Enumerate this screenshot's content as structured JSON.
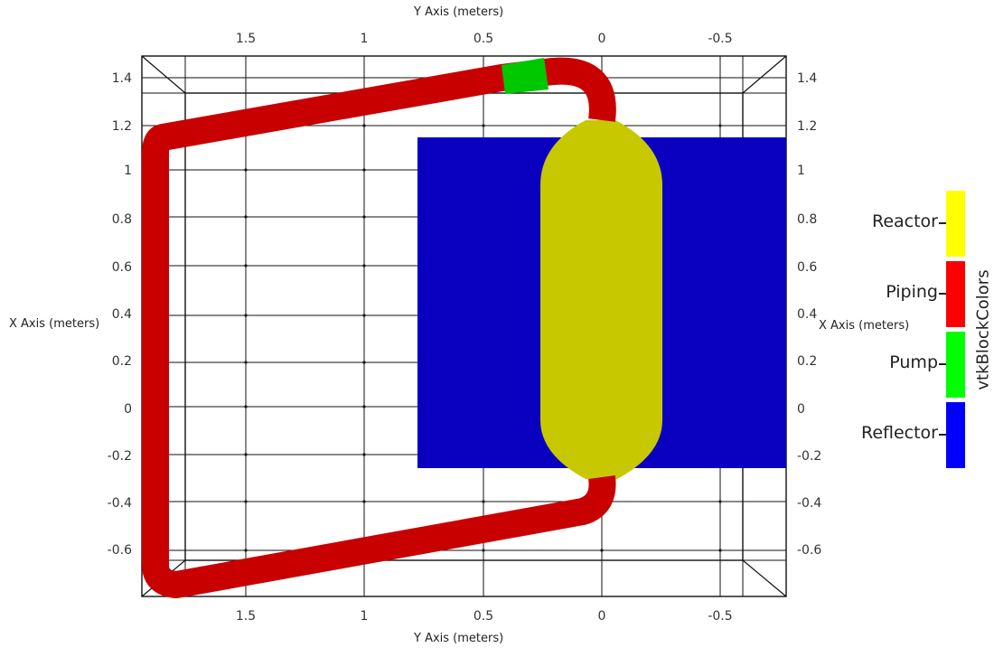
{
  "axes": {
    "top_title": "Y Axis (meters)",
    "bottom_title": "Y Axis (meters)",
    "left_title": "X Axis (meters)",
    "right_title": "X Axis (meters)",
    "y_ticks": [
      "1.5",
      "1",
      "0.5",
      "0",
      "-0.5"
    ],
    "x_ticks": [
      "1.4",
      "1.2",
      "1",
      "0.8",
      "0.6",
      "0.4",
      "0.2",
      "0",
      "-0.2",
      "-0.4",
      "-0.6"
    ]
  },
  "blocks": {
    "piping_color": "#c80000",
    "pump_color": "#00c800",
    "reactor_color": "#c8c800",
    "reflector_color": "#0a00c0"
  },
  "legend": {
    "title": "vtkBlockColors",
    "items": [
      {
        "label": "Reactor",
        "color": "#ffff00"
      },
      {
        "label": "Piping",
        "color": "#ff0000"
      },
      {
        "label": "Pump",
        "color": "#00ff00"
      },
      {
        "label": "Reflector",
        "color": "#0000ff"
      }
    ]
  }
}
